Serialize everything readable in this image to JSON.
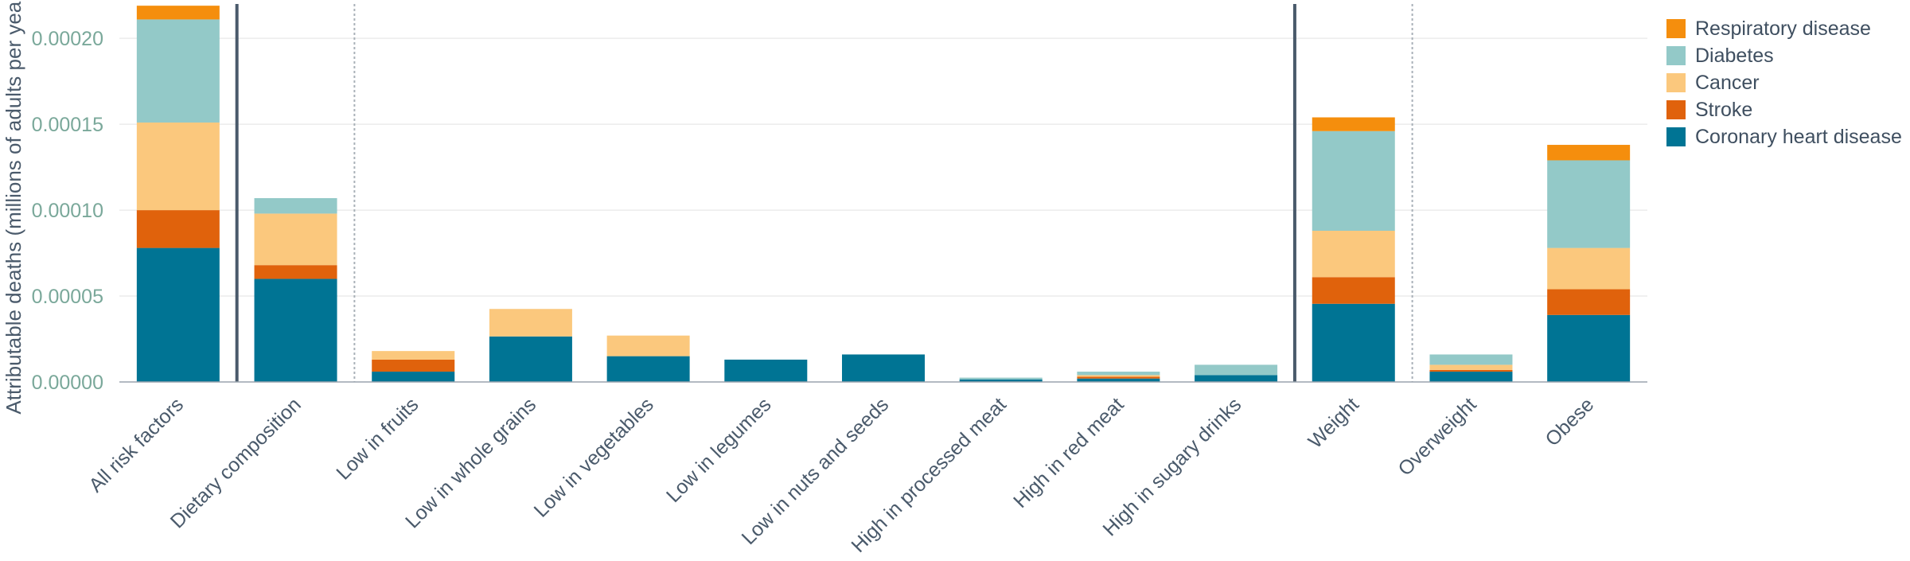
{
  "chart_data": {
    "type": "bar",
    "stacked": true,
    "ylabel": "Attributable deaths (millions of adults per year)",
    "xlabel": "",
    "ylim": [
      0,
      0.00022
    ],
    "yticks": [
      "0.00000",
      "0.00005",
      "0.00010",
      "0.00015",
      "0.00020"
    ],
    "ytick_values": [
      0,
      5e-05,
      0.0001,
      0.00015,
      0.0002
    ],
    "grid": true,
    "legend_position": "top-right",
    "categories": [
      "All risk factors",
      "Dietary composition",
      "Low in fruits",
      "Low in whole grains",
      "Low in vegetables",
      "Low in legumes",
      "Low in nuts and seeds",
      "High in processed meat",
      "High in red meat",
      "High in sugary drinks",
      "Weight",
      "Overweight",
      "Obese"
    ],
    "series": [
      {
        "name": "Coronary heart disease",
        "color": "#007494",
        "values": [
          7.8e-05,
          6e-05,
          6e-06,
          2.65e-05,
          1.5e-05,
          1.3e-05,
          1.6e-05,
          1.5e-06,
          2e-06,
          4e-06,
          4.55e-05,
          6e-06,
          3.9e-05
        ]
      },
      {
        "name": "Stroke",
        "color": "#e0620c",
        "values": [
          2.2e-05,
          8e-06,
          7e-06,
          0,
          0,
          0,
          0,
          0,
          1e-06,
          0,
          1.55e-05,
          1e-06,
          1.5e-05
        ]
      },
      {
        "name": "Cancer",
        "color": "#fbc87d",
        "values": [
          5.1e-05,
          3e-05,
          5e-06,
          1.6e-05,
          1.2e-05,
          0,
          0,
          0,
          1e-06,
          0,
          2.7e-05,
          3e-06,
          2.4e-05
        ]
      },
      {
        "name": "Diabetes",
        "color": "#93c9c8",
        "values": [
          6e-05,
          9e-06,
          0,
          0,
          0,
          0,
          0,
          1e-06,
          2e-06,
          6e-06,
          5.8e-05,
          6e-06,
          5.1e-05
        ]
      },
      {
        "name": "Respiratory disease",
        "color": "#f58e0d",
        "values": [
          8e-06,
          0,
          0,
          0,
          0,
          0,
          0,
          0,
          0,
          0,
          8e-06,
          0,
          9e-06
        ]
      }
    ],
    "legend_order": [
      "Respiratory disease",
      "Diabetes",
      "Cancer",
      "Stroke",
      "Coronary heart disease"
    ],
    "solid_separators_after": [
      "All risk factors",
      "High in sugary drinks"
    ],
    "dotted_separators_after": [
      "Dietary composition",
      "Weight"
    ]
  }
}
